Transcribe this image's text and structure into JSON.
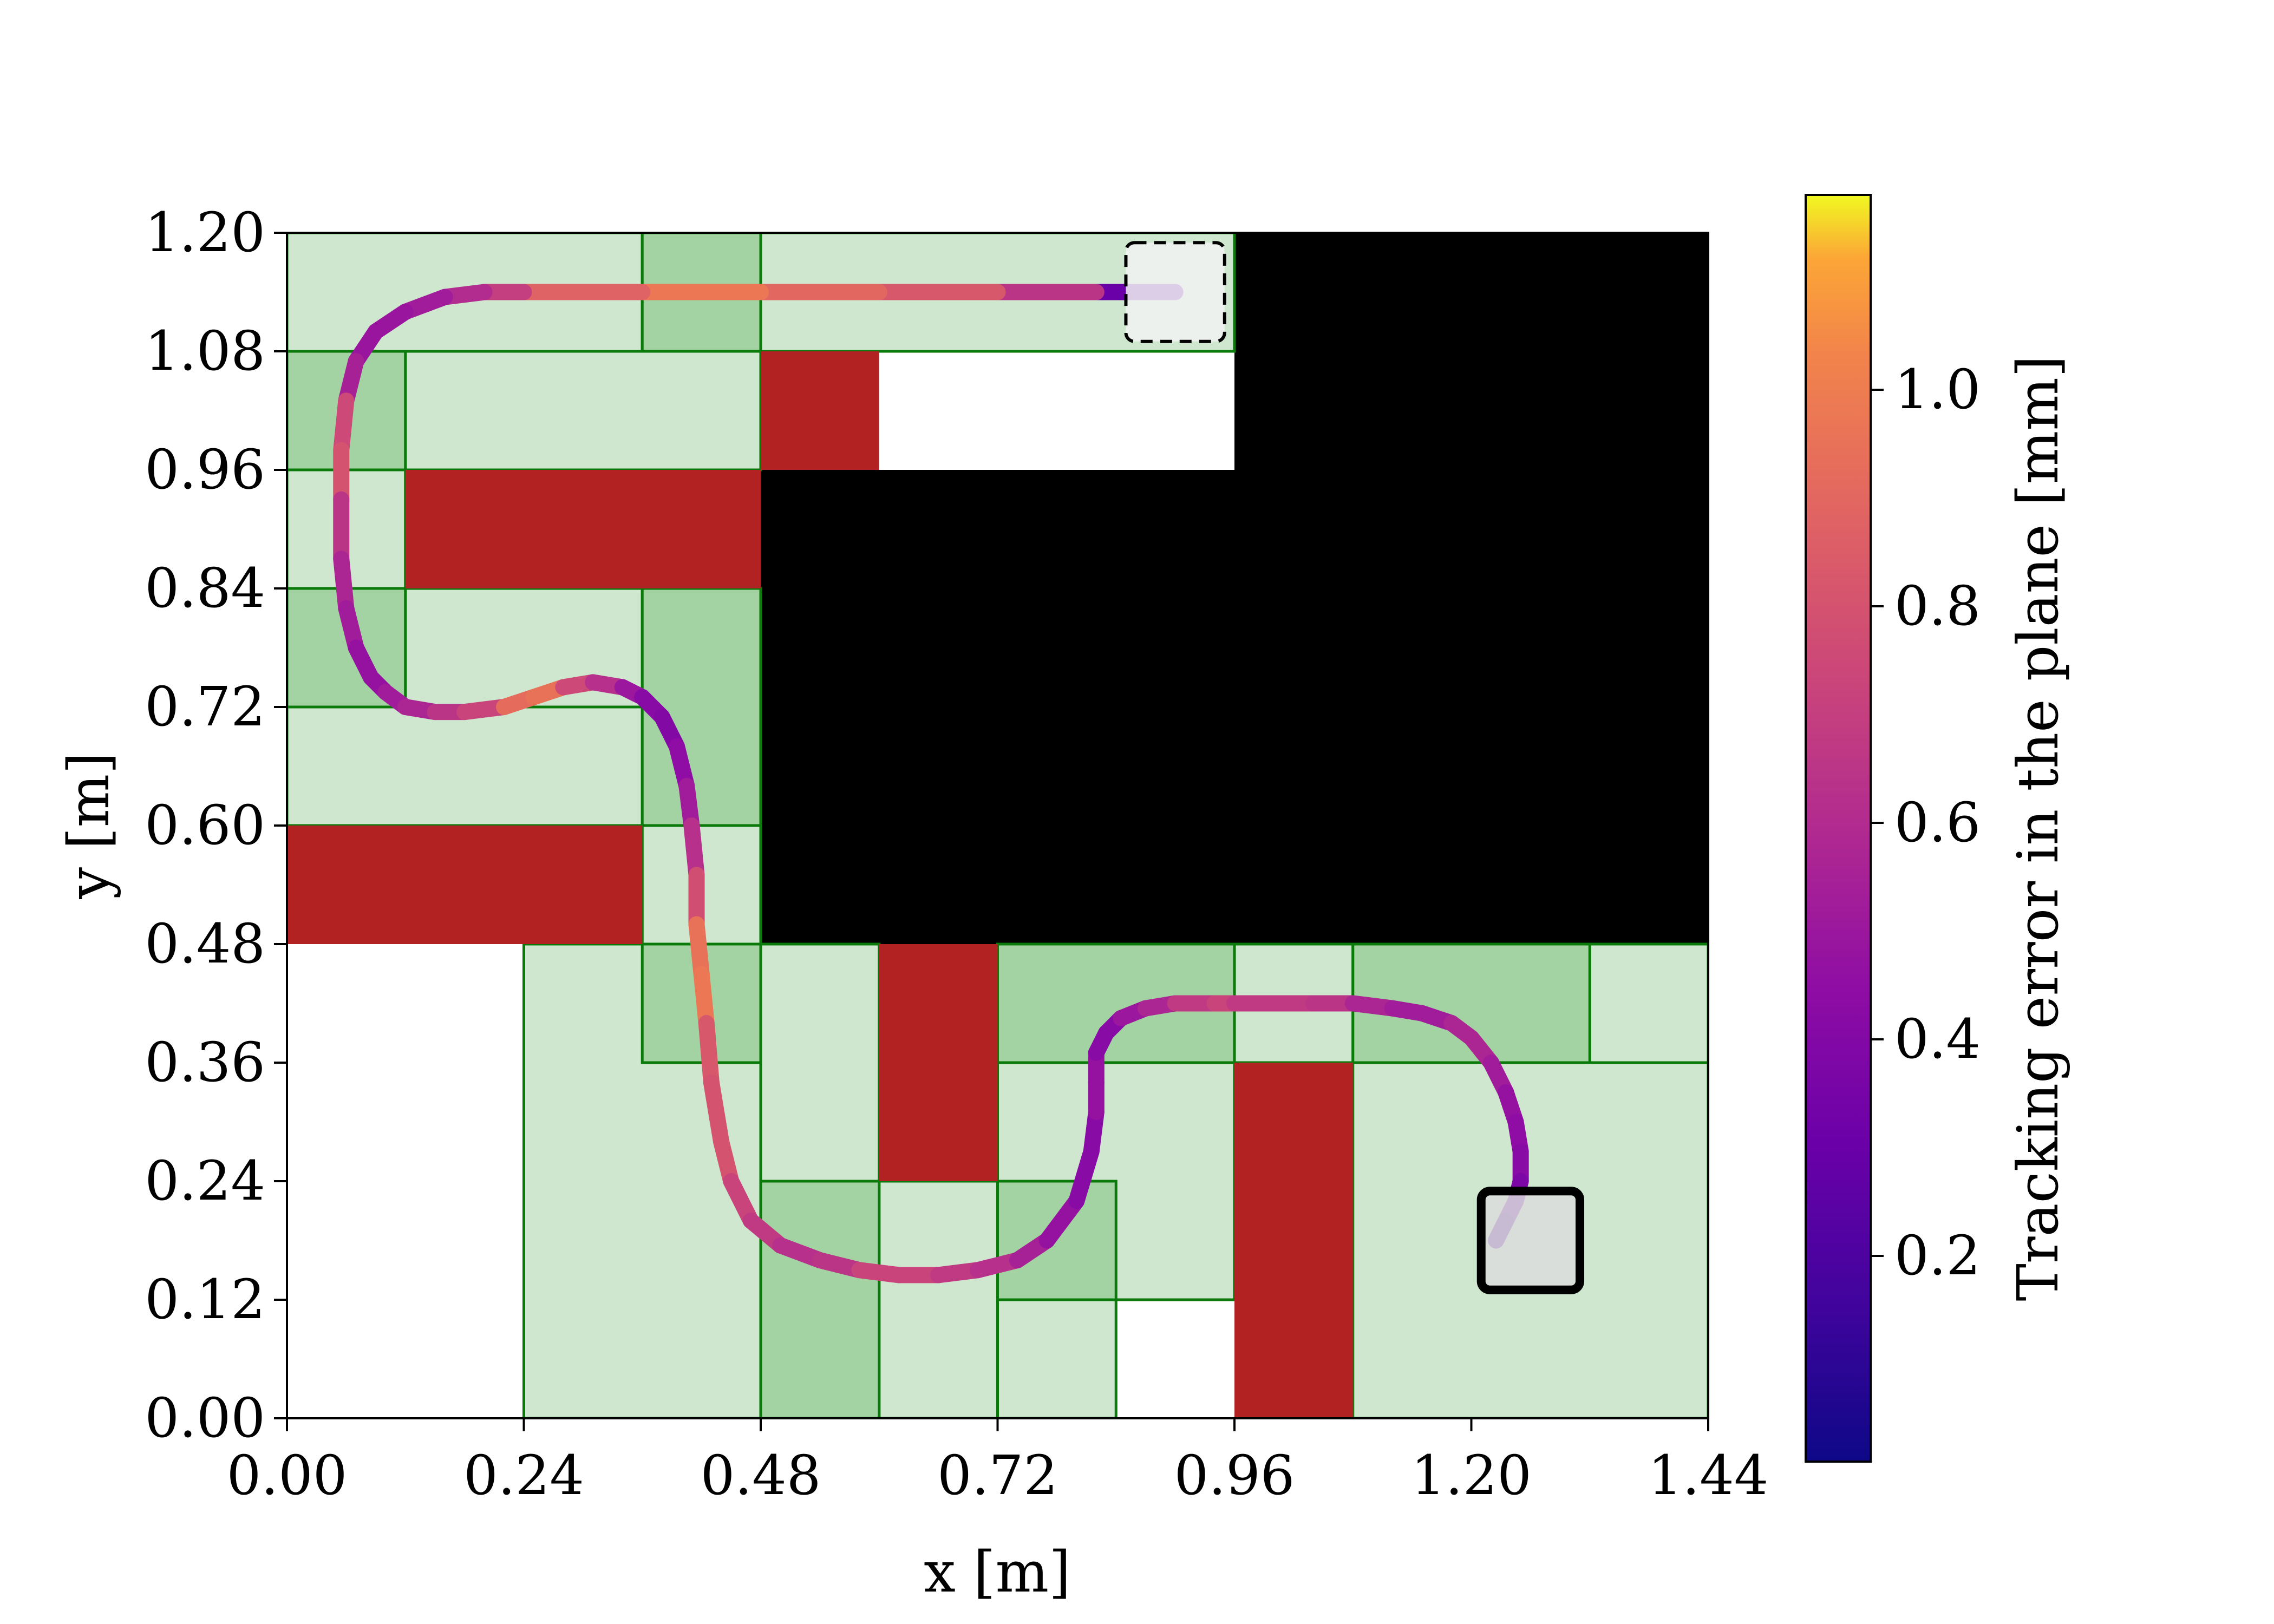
{
  "chart_data": {
    "type": "map",
    "xlabel": "x [m]",
    "ylabel": "y [m]",
    "xlim": [
      0,
      1.44
    ],
    "ylim": [
      0,
      1.2
    ],
    "x_ticks": [
      "0.00",
      "0.24",
      "0.48",
      "0.72",
      "0.96",
      "1.20",
      "1.44"
    ],
    "x_tick_values": [
      0,
      0.24,
      0.48,
      0.72,
      0.96,
      1.2,
      1.44
    ],
    "y_ticks": [
      "0.00",
      "0.12",
      "0.24",
      "0.36",
      "0.48",
      "0.60",
      "0.72",
      "0.84",
      "0.96",
      "1.08",
      "1.20"
    ],
    "y_tick_values": [
      0,
      0.12,
      0.24,
      0.36,
      0.48,
      0.6,
      0.72,
      0.84,
      0.96,
      1.08,
      1.2
    ],
    "colors": {
      "light_green": "#cfe6cf",
      "mid_green": "#a3d2a3",
      "cell_edge": "#0a7a0a",
      "red": "#b22222",
      "black": "#000000",
      "start_box": "#f2f2f2",
      "goal_box": "#dcdcdc"
    },
    "light_green_cells": [
      [
        0,
        1.08,
        0.36,
        0.12
      ],
      [
        0.36,
        1.08,
        0.6,
        0.12
      ],
      [
        0,
        0.96,
        0.12,
        0.12
      ],
      [
        0.12,
        0.96,
        0.36,
        0.12
      ],
      [
        0,
        0.84,
        0.12,
        0.12
      ],
      [
        0,
        0.72,
        0.12,
        0.12
      ],
      [
        0.12,
        0.72,
        0.24,
        0.12
      ],
      [
        0,
        0.6,
        0.36,
        0.12
      ],
      [
        0.36,
        0.48,
        0.12,
        0.12
      ],
      [
        0.24,
        0,
        0.24,
        0.48
      ],
      [
        0.48,
        0.24,
        0.12,
        0.24
      ],
      [
        0.6,
        0,
        0.12,
        0.24
      ],
      [
        0.72,
        0,
        0.12,
        0.12
      ],
      [
        0.72,
        0.12,
        0.24,
        0.24
      ],
      [
        0.96,
        0.36,
        0.12,
        0.12
      ],
      [
        1.08,
        0,
        0.36,
        0.36
      ],
      [
        1.32,
        0.36,
        0.12,
        0.12
      ]
    ],
    "mid_green_cells": [
      [
        0.36,
        1.08,
        0.12,
        0.12
      ],
      [
        0,
        0.96,
        0.12,
        0.12
      ],
      [
        0,
        0.72,
        0.12,
        0.12
      ],
      [
        0.36,
        0.6,
        0.12,
        0.24
      ],
      [
        0.36,
        0.36,
        0.12,
        0.12
      ],
      [
        0.48,
        0,
        0.12,
        0.24
      ],
      [
        0.72,
        0.36,
        0.24,
        0.12
      ],
      [
        0.72,
        0.12,
        0.12,
        0.12
      ],
      [
        1.08,
        0.36,
        0.24,
        0.12
      ]
    ],
    "red_obstacles": [
      [
        0.48,
        0.96,
        0.12,
        0.12
      ],
      [
        0.12,
        0.84,
        0.36,
        0.12
      ],
      [
        0,
        0.48,
        0.36,
        0.12
      ],
      [
        0.6,
        0.24,
        0.12,
        0.24
      ],
      [
        0.96,
        0,
        0.12,
        0.36
      ]
    ],
    "black_regions": [
      [
        0.96,
        0.96,
        0.48,
        0.24
      ],
      [
        0.48,
        0.48,
        0.96,
        0.48
      ]
    ],
    "start_box": {
      "center": [
        0.9,
        1.14
      ],
      "size": 0.1,
      "style": "dashed"
    },
    "goal_box": {
      "center": [
        1.26,
        0.18
      ],
      "size": 0.1,
      "style": "solid"
    },
    "path": {
      "colorbar_label": "Tracking error in the plane [mm]",
      "cmap": "plasma",
      "clim": [
        0.01,
        1.18
      ],
      "colorbar_ticks": [
        "0.2",
        "0.4",
        "0.6",
        "0.8",
        "1.0"
      ],
      "colorbar_tick_values": [
        0.2,
        0.4,
        0.6,
        0.8,
        1.0
      ],
      "x": [
        0.9,
        0.82,
        0.72,
        0.6,
        0.48,
        0.36,
        0.24,
        0.2,
        0.16,
        0.12,
        0.09,
        0.07,
        0.06,
        0.055,
        0.055,
        0.055,
        0.06,
        0.07,
        0.085,
        0.1,
        0.12,
        0.15,
        0.18,
        0.22,
        0.25,
        0.28,
        0.31,
        0.34,
        0.36,
        0.38,
        0.395,
        0.405,
        0.41,
        0.415,
        0.415,
        0.42,
        0.425,
        0.43,
        0.44,
        0.45,
        0.47,
        0.5,
        0.54,
        0.58,
        0.62,
        0.66,
        0.7,
        0.74,
        0.77,
        0.8,
        0.815,
        0.82,
        0.82,
        0.82,
        0.83,
        0.845,
        0.87,
        0.9,
        0.94,
        0.96,
        1.0,
        1.04,
        1.08,
        1.12,
        1.15,
        1.18,
        1.2,
        1.22,
        1.235,
        1.245,
        1.25,
        1.25,
        1.245,
        1.235,
        1.225
      ],
      "y": [
        1.14,
        1.14,
        1.14,
        1.14,
        1.14,
        1.14,
        1.14,
        1.14,
        1.135,
        1.12,
        1.1,
        1.07,
        1.03,
        0.98,
        0.93,
        0.87,
        0.82,
        0.78,
        0.75,
        0.735,
        0.72,
        0.715,
        0.715,
        0.72,
        0.73,
        0.74,
        0.745,
        0.74,
        0.73,
        0.71,
        0.68,
        0.64,
        0.6,
        0.55,
        0.5,
        0.45,
        0.4,
        0.34,
        0.28,
        0.24,
        0.2,
        0.175,
        0.16,
        0.15,
        0.145,
        0.145,
        0.15,
        0.16,
        0.18,
        0.22,
        0.27,
        0.31,
        0.34,
        0.37,
        0.39,
        0.405,
        0.415,
        0.42,
        0.42,
        0.42,
        0.42,
        0.42,
        0.42,
        0.415,
        0.41,
        0.4,
        0.385,
        0.36,
        0.33,
        0.3,
        0.27,
        0.24,
        0.22,
        0.2,
        0.18
      ],
      "error_mm": [
        0.1,
        0.5,
        0.8,
        0.85,
        0.95,
        1.0,
        0.75,
        0.65,
        0.55,
        0.5,
        0.48,
        0.5,
        0.6,
        0.9,
        0.7,
        0.6,
        0.55,
        0.5,
        0.45,
        0.5,
        0.55,
        0.6,
        0.7,
        0.75,
        1.1,
        0.8,
        0.7,
        0.55,
        0.45,
        0.4,
        0.4,
        0.5,
        0.55,
        0.7,
        0.85,
        1.05,
        0.9,
        0.75,
        0.85,
        0.75,
        0.7,
        0.65,
        0.6,
        0.7,
        0.75,
        0.7,
        0.65,
        0.6,
        0.5,
        0.45,
        0.4,
        0.45,
        0.5,
        0.45,
        0.4,
        0.45,
        0.55,
        0.6,
        0.75,
        0.7,
        0.65,
        0.7,
        0.6,
        0.55,
        0.5,
        0.55,
        0.6,
        0.55,
        0.5,
        0.45,
        0.45,
        0.4,
        0.35,
        0.3,
        0.15
      ]
    }
  }
}
